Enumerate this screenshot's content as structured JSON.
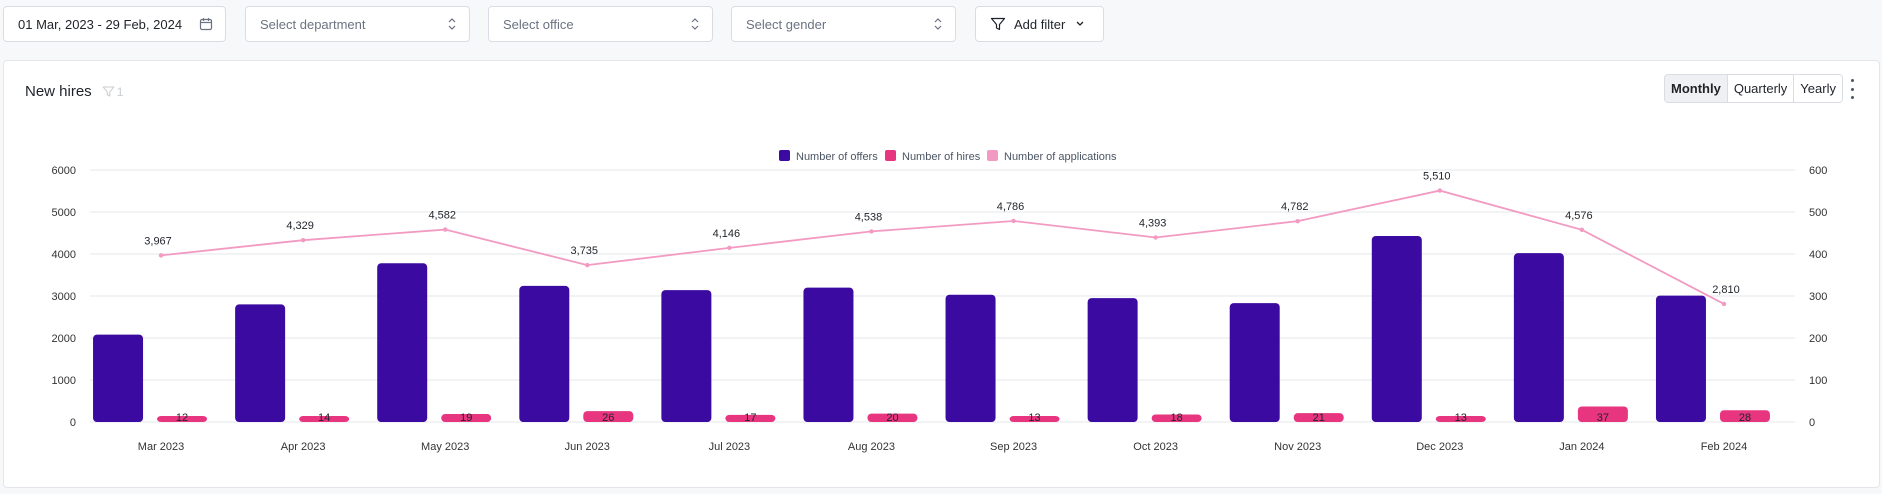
{
  "filters": {
    "date_range": "01 Mar, 2023 - 29 Feb, 2024",
    "department_placeholder": "Select department",
    "office_placeholder": "Select office",
    "gender_placeholder": "Select gender",
    "add_filter_label": "Add filter"
  },
  "card": {
    "title": "New hires",
    "filter_count": "1",
    "period_options": [
      "Monthly",
      "Quarterly",
      "Yearly"
    ],
    "active_period": "Monthly"
  },
  "colors": {
    "offers": "#3b0aa0",
    "hires": "#e8357f",
    "applications": "#f29ac2"
  },
  "chart_data": {
    "type": "bar",
    "categories": [
      "Mar 2023",
      "Apr 2023",
      "May 2023",
      "Jun 2023",
      "Jul 2023",
      "Aug 2023",
      "Sep 2023",
      "Oct 2023",
      "Nov 2023",
      "Dec 2023",
      "Jan 2024",
      "Feb 2024"
    ],
    "legend": [
      "Number of offers",
      "Number of hires",
      "Number of applications"
    ],
    "legend_position": "top-center",
    "left_axis": {
      "ticks": [
        0,
        1000,
        2000,
        3000,
        4000,
        5000,
        6000
      ],
      "ylim": [
        0,
        6000
      ]
    },
    "right_axis": {
      "ticks": [
        0,
        100,
        200,
        300,
        400,
        500,
        600
      ],
      "ylim": [
        0,
        600
      ]
    },
    "grid": true,
    "series": [
      {
        "name": "Number of offers",
        "type": "bar",
        "axis": "left",
        "values": [
          2080,
          2800,
          3780,
          3240,
          3140,
          3200,
          3030,
          2950,
          2830,
          4430,
          4020,
          3010
        ]
      },
      {
        "name": "Number of hires",
        "type": "bar",
        "axis": "right",
        "values": [
          12,
          14,
          19,
          26,
          17,
          20,
          13,
          18,
          21,
          13,
          37,
          28
        ],
        "labels": [
          "12",
          "14",
          "19",
          "26",
          "17",
          "20",
          "13",
          "18",
          "21",
          "13",
          "37",
          "28"
        ]
      },
      {
        "name": "Number of applications",
        "type": "line",
        "axis": "left",
        "values": [
          3967,
          4329,
          4582,
          3735,
          4146,
          4538,
          4786,
          4393,
          4782,
          5510,
          4576,
          2810
        ],
        "labels": [
          "3,967",
          "4,329",
          "4,582",
          "3,735",
          "4,146",
          "4,538",
          "4,786",
          "4,393",
          "4,782",
          "5,510",
          "4,576",
          "2,810"
        ]
      }
    ]
  }
}
